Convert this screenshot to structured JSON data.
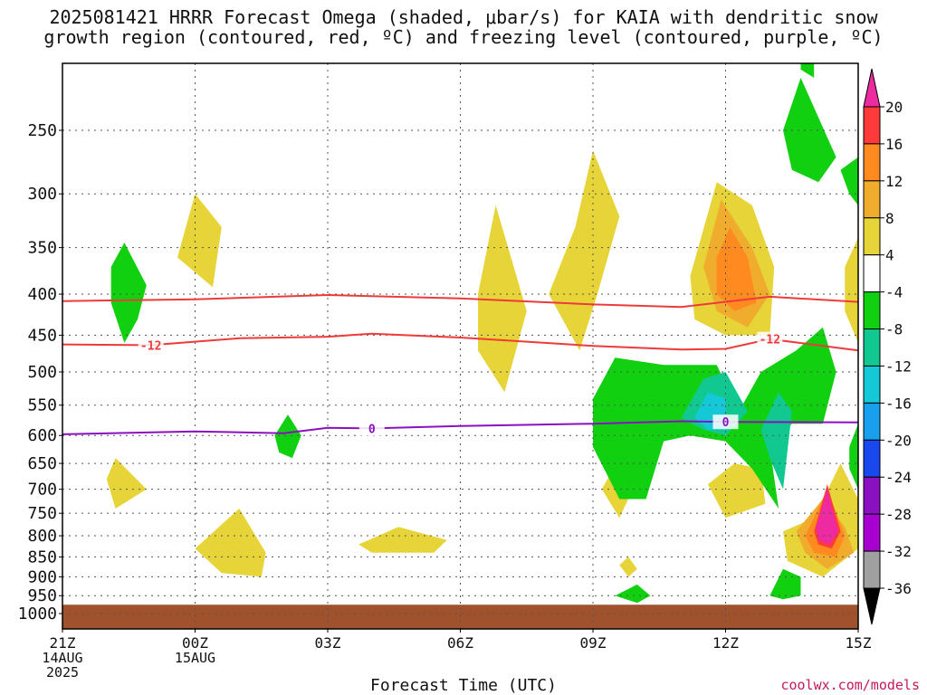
{
  "chart_data": {
    "type": "heatmap",
    "title_lines": [
      "2025081421 HRRR Forecast Omega (shaded, μbar/s) for KAIA with dendritic snow",
      "growth region (contoured, red, ºC) and freezing level (contoured, purple, ºC)"
    ],
    "xlabel": "Forecast Time (UTC)",
    "x_ticks": [
      {
        "hour": 0,
        "lines": [
          "21Z",
          "14AUG",
          "2025"
        ]
      },
      {
        "hour": 3,
        "lines": [
          "00Z",
          "15AUG"
        ]
      },
      {
        "hour": 6,
        "lines": [
          "03Z"
        ]
      },
      {
        "hour": 9,
        "lines": [
          "06Z"
        ]
      },
      {
        "hour": 12,
        "lines": [
          "09Z"
        ]
      },
      {
        "hour": 15,
        "lines": [
          "12Z"
        ]
      },
      {
        "hour": 18,
        "lines": [
          "15Z"
        ]
      }
    ],
    "x_range_hours": [
      0,
      18
    ],
    "y_ticks": [
      250,
      300,
      350,
      400,
      450,
      500,
      550,
      600,
      650,
      700,
      750,
      800,
      850,
      900,
      950,
      1000
    ],
    "y_axis_scale": "log-pressure (hPa), top ~200",
    "grid": true,
    "colorbar": {
      "ticks": [
        20,
        16,
        12,
        8,
        4,
        -4,
        -8,
        -12,
        -16,
        -20,
        -24,
        -28,
        -32,
        -36
      ],
      "colors": [
        "#ee2aa0",
        "#ff3a3a",
        "#ff8a20",
        "#f0ac2c",
        "#e6d438",
        "#ffffff",
        "#10d010",
        "#10c890",
        "#14c8d8",
        "#18a0ee",
        "#1848ee",
        "#8a10c0",
        "#a800d0",
        "#a0a0a0",
        "#000000"
      ]
    },
    "contours": [
      {
        "name": "-12 (upper)",
        "color": "#ee3a3a",
        "label": "",
        "points": [
          [
            0,
            408
          ],
          [
            3,
            406
          ],
          [
            6,
            401
          ],
          [
            9,
            405
          ],
          [
            12,
            412
          ],
          [
            14,
            415
          ],
          [
            16,
            403
          ],
          [
            18,
            409
          ]
        ]
      },
      {
        "name": "-12 (lower)",
        "color": "#ee3a3a",
        "label": "-12",
        "label_hours": [
          2,
          16
        ],
        "points": [
          [
            0,
            462
          ],
          [
            2,
            463
          ],
          [
            4,
            454
          ],
          [
            6,
            452
          ],
          [
            7,
            448
          ],
          [
            9,
            453
          ],
          [
            12,
            464
          ],
          [
            14,
            469
          ],
          [
            15,
            468
          ],
          [
            16,
            455
          ],
          [
            18,
            470
          ]
        ]
      },
      {
        "name": "0",
        "color": "#8a10c0",
        "label": "0",
        "label_hours": [
          7,
          15
        ],
        "points": [
          [
            0,
            598
          ],
          [
            3,
            593
          ],
          [
            5,
            596
          ],
          [
            6,
            587
          ],
          [
            7,
            588
          ],
          [
            9,
            584
          ],
          [
            12,
            580
          ],
          [
            14,
            576
          ],
          [
            15,
            577
          ],
          [
            18,
            578
          ]
        ]
      }
    ],
    "omega_features": [
      {
        "level": 4,
        "color": "#e6d438",
        "points": [
          [
            2.6,
            360
          ],
          [
            3.0,
            300
          ],
          [
            3.6,
            330
          ],
          [
            3.4,
            392
          ]
        ]
      },
      {
        "level": 4,
        "color": "#e6d438",
        "points": [
          [
            1.2,
            640
          ],
          [
            1.9,
            700
          ],
          [
            1.2,
            740
          ],
          [
            1.0,
            680
          ]
        ]
      },
      {
        "level": 4,
        "color": "#e6d438",
        "points": [
          [
            3.0,
            830
          ],
          [
            4.0,
            740
          ],
          [
            4.6,
            840
          ],
          [
            4.5,
            900
          ],
          [
            3.6,
            890
          ]
        ]
      },
      {
        "level": 4,
        "color": "#e6d438",
        "points": [
          [
            6.7,
            820
          ],
          [
            7.6,
            780
          ],
          [
            8.7,
            810
          ],
          [
            8.4,
            840
          ],
          [
            7.0,
            840
          ]
        ]
      },
      {
        "level": 4,
        "color": "#e6d438",
        "points": [
          [
            9.4,
            400
          ],
          [
            9.8,
            310
          ],
          [
            10.5,
            420
          ],
          [
            10.0,
            530
          ],
          [
            9.4,
            470
          ]
        ]
      },
      {
        "level": 4,
        "color": "#e6d438",
        "points": [
          [
            11.0,
            400
          ],
          [
            11.6,
            330
          ],
          [
            12.0,
            265
          ],
          [
            12.6,
            320
          ],
          [
            12.1,
            400
          ],
          [
            11.7,
            470
          ]
        ]
      },
      {
        "level": 4,
        "color": "#e6d438",
        "points": [
          [
            12.6,
            640
          ],
          [
            12.9,
            700
          ],
          [
            12.6,
            760
          ],
          [
            12.2,
            700
          ]
        ]
      },
      {
        "level": 4,
        "color": "#e6d438",
        "points": [
          [
            12.8,
            850
          ],
          [
            13.0,
            880
          ],
          [
            12.8,
            900
          ],
          [
            12.6,
            870
          ]
        ]
      },
      {
        "level": 4,
        "color": "#e6d438",
        "points": [
          [
            14.2,
            380
          ],
          [
            14.8,
            290
          ],
          [
            15.6,
            310
          ],
          [
            16.1,
            370
          ],
          [
            16.0,
            450
          ],
          [
            15.0,
            450
          ],
          [
            14.3,
            430
          ]
        ]
      },
      {
        "level": 4,
        "color": "#e6d438",
        "points": [
          [
            14.6,
            690
          ],
          [
            15.2,
            650
          ],
          [
            15.8,
            660
          ],
          [
            15.9,
            730
          ],
          [
            15.0,
            760
          ]
        ]
      },
      {
        "level": 4,
        "color": "#e6d438",
        "points": [
          [
            16.3,
            790
          ],
          [
            17.0,
            760
          ],
          [
            17.6,
            650
          ],
          [
            18.0,
            720
          ],
          [
            18.0,
            830
          ],
          [
            17.2,
            900
          ],
          [
            16.4,
            860
          ]
        ]
      },
      {
        "level": 4,
        "color": "#e6d438",
        "points": [
          [
            17.7,
            370
          ],
          [
            18.0,
            340
          ],
          [
            18.0,
            460
          ],
          [
            17.7,
            420
          ]
        ]
      },
      {
        "level": 8,
        "color": "#f0ac2c",
        "points": [
          [
            14.5,
            370
          ],
          [
            14.9,
            305
          ],
          [
            15.6,
            350
          ],
          [
            16.0,
            400
          ],
          [
            15.5,
            440
          ],
          [
            14.8,
            420
          ]
        ]
      },
      {
        "level": 12,
        "color": "#ff8a20",
        "points": [
          [
            14.8,
            360
          ],
          [
            15.1,
            330
          ],
          [
            15.5,
            360
          ],
          [
            15.7,
            410
          ],
          [
            15.2,
            420
          ],
          [
            14.8,
            400
          ]
        ]
      },
      {
        "level": 8,
        "color": "#f0ac2c",
        "points": [
          [
            16.6,
            790
          ],
          [
            17.2,
            720
          ],
          [
            17.7,
            780
          ],
          [
            17.9,
            840
          ],
          [
            17.3,
            880
          ],
          [
            16.8,
            840
          ]
        ]
      },
      {
        "level": 12,
        "color": "#ff8a20",
        "points": [
          [
            16.8,
            800
          ],
          [
            17.3,
            700
          ],
          [
            17.7,
            800
          ],
          [
            17.5,
            850
          ],
          [
            17.0,
            840
          ]
        ]
      },
      {
        "level": 16,
        "color": "#ff3a3a",
        "points": [
          [
            17.0,
            790
          ],
          [
            17.3,
            690
          ],
          [
            17.6,
            790
          ],
          [
            17.4,
            830
          ],
          [
            17.1,
            820
          ]
        ]
      },
      {
        "level": 20,
        "color": "#ee2aa0",
        "points": [
          [
            17.05,
            780
          ],
          [
            17.3,
            700
          ],
          [
            17.55,
            790
          ],
          [
            17.35,
            820
          ],
          [
            17.1,
            810
          ]
        ]
      },
      {
        "level": -4,
        "color": "#10d010",
        "points": [
          [
            1.1,
            370
          ],
          [
            1.4,
            345
          ],
          [
            1.9,
            390
          ],
          [
            1.7,
            430
          ],
          [
            1.4,
            460
          ],
          [
            1.1,
            410
          ]
        ]
      },
      {
        "level": -4,
        "color": "#10d010",
        "points": [
          [
            4.8,
            600
          ],
          [
            5.1,
            565
          ],
          [
            5.4,
            600
          ],
          [
            5.2,
            640
          ],
          [
            4.9,
            630
          ]
        ]
      },
      {
        "level": -4,
        "color": "#10d010",
        "points": [
          [
            12.0,
            540
          ],
          [
            12.5,
            480
          ],
          [
            13.6,
            490
          ],
          [
            14.8,
            490
          ],
          [
            15.3,
            560
          ],
          [
            15.8,
            500
          ],
          [
            16.6,
            470
          ],
          [
            17.2,
            440
          ],
          [
            17.5,
            500
          ],
          [
            17.2,
            580
          ],
          [
            16.5,
            580
          ],
          [
            16.0,
            620
          ],
          [
            16.2,
            740
          ],
          [
            15.6,
            660
          ],
          [
            15.0,
            610
          ],
          [
            14.2,
            600
          ],
          [
            13.6,
            610
          ],
          [
            13.2,
            720
          ],
          [
            12.6,
            720
          ],
          [
            12.0,
            620
          ]
        ]
      },
      {
        "level": -4,
        "color": "#10d010",
        "points": [
          [
            16.3,
            250
          ],
          [
            16.7,
            215
          ],
          [
            17.5,
            270
          ],
          [
            17.1,
            290
          ],
          [
            16.5,
            280
          ]
        ]
      },
      {
        "level": -4,
        "color": "#10d010",
        "points": [
          [
            16.7,
            210
          ],
          [
            16.7,
            200
          ],
          [
            17.0,
            200
          ],
          [
            17.0,
            215
          ]
        ]
      },
      {
        "level": -4,
        "color": "#10d010",
        "points": [
          [
            16.0,
            950
          ],
          [
            16.3,
            880
          ],
          [
            16.7,
            900
          ],
          [
            16.7,
            950
          ],
          [
            16.3,
            960
          ]
        ]
      },
      {
        "level": -4,
        "color": "#10d010",
        "points": [
          [
            12.5,
            950
          ],
          [
            13.0,
            920
          ],
          [
            13.3,
            950
          ],
          [
            13.0,
            970
          ]
        ]
      },
      {
        "level": -4,
        "color": "#10d010",
        "points": [
          [
            17.6,
            280
          ],
          [
            18.0,
            270
          ],
          [
            18.0,
            310
          ],
          [
            17.8,
            300
          ]
        ]
      },
      {
        "level": -4,
        "color": "#10d010",
        "points": [
          [
            17.8,
            620
          ],
          [
            18.0,
            580
          ],
          [
            18.0,
            700
          ],
          [
            17.8,
            660
          ]
        ]
      },
      {
        "level": -8,
        "color": "#10c890",
        "points": [
          [
            14.0,
            570
          ],
          [
            14.5,
            510
          ],
          [
            15.0,
            500
          ],
          [
            15.5,
            560
          ],
          [
            15.0,
            600
          ],
          [
            14.5,
            590
          ]
        ]
      },
      {
        "level": -8,
        "color": "#10c890",
        "points": [
          [
            15.8,
            590
          ],
          [
            16.2,
            530
          ],
          [
            16.5,
            560
          ],
          [
            16.3,
            700
          ],
          [
            16.0,
            640
          ]
        ]
      },
      {
        "level": -12,
        "color": "#14c8d8",
        "points": [
          [
            14.3,
            570
          ],
          [
            14.6,
            530
          ],
          [
            15.0,
            540
          ],
          [
            15.0,
            590
          ],
          [
            14.6,
            590
          ]
        ]
      }
    ],
    "ground_band": {
      "from": 975,
      "to": 1040,
      "color": "#a0522d"
    }
  },
  "credit": "coolwx.com/models"
}
